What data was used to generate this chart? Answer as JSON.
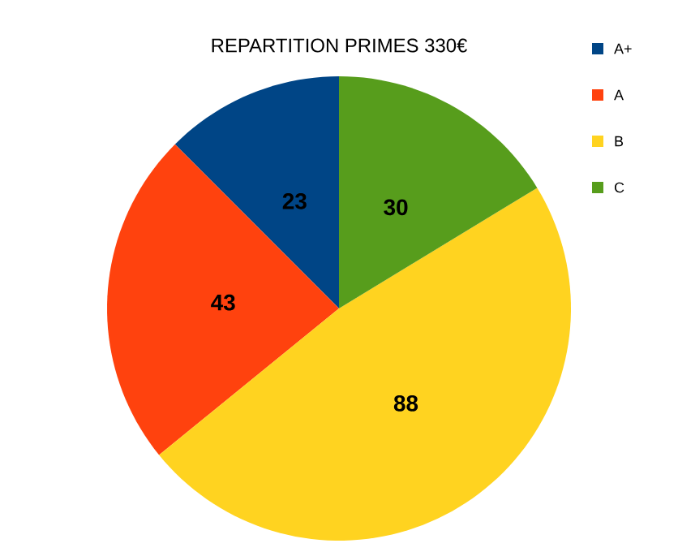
{
  "chart_data": {
    "type": "pie",
    "title": "REPARTITION PRIMES 330€",
    "categories": [
      "A+",
      "A",
      "B",
      "C"
    ],
    "values": [
      23,
      43,
      88,
      30
    ],
    "colors": [
      "#004586",
      "#ff420e",
      "#ffd320",
      "#579d1c"
    ],
    "data_labels": true,
    "legend": "right"
  }
}
